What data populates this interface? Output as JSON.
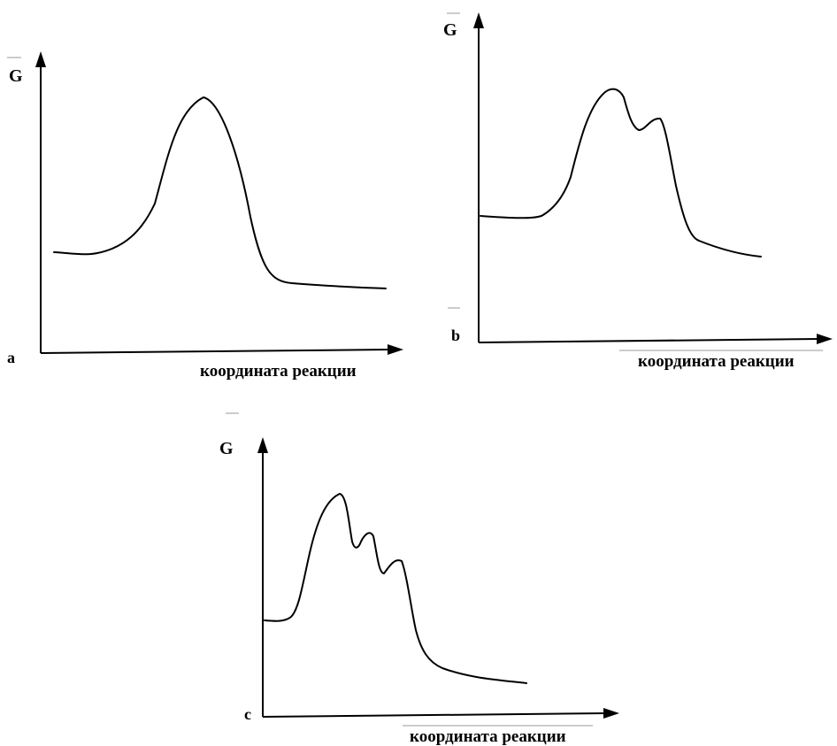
{
  "panels": [
    {
      "id": "a",
      "panel_label": "a",
      "y_axis_label": "G",
      "x_axis_label": "координата реакции",
      "peaks": 1
    },
    {
      "id": "b",
      "panel_label": "b",
      "y_axis_label": "G",
      "x_axis_label": "координата реакции",
      "peaks": 2
    },
    {
      "id": "c",
      "panel_label": "c",
      "y_axis_label": "G",
      "x_axis_label": "координата реакции",
      "peaks": 3
    }
  ]
}
